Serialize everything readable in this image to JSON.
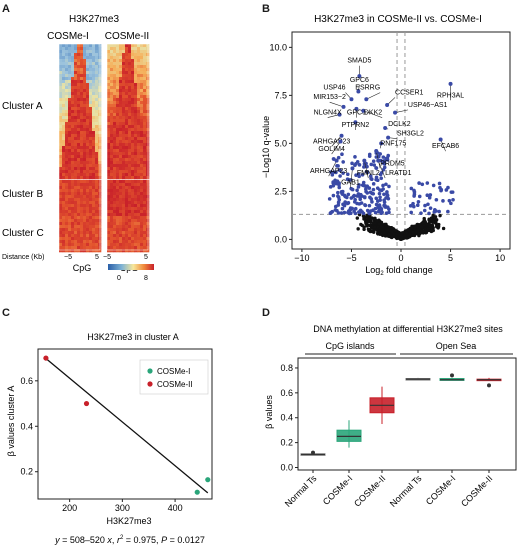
{
  "panels": {
    "A": "A",
    "B": "B",
    "C": "C",
    "D": "D"
  },
  "chart_data": [
    {
      "panel": "A",
      "type": "heatmap",
      "title": "H3K27me3",
      "columns": [
        "COSMe-I",
        "COSMe-II"
      ],
      "clusters": [
        "Cluster A",
        "Cluster B",
        "Cluster C"
      ],
      "x_axis_label": "Distance (Kb)",
      "x_ticks": [
        "−5",
        "5",
        "−5",
        "5"
      ],
      "center_labels": [
        "CpG",
        "CpG"
      ],
      "colorbar": {
        "min": "0",
        "max": "8",
        "colors": [
          "#2a5fa8",
          "#7fb3d5",
          "#f7e79a",
          "#f08a3c",
          "#c8202a"
        ]
      }
    },
    {
      "panel": "B",
      "type": "scatter",
      "title": "H3K27me3 in COSMe-II vs. COSMe-I",
      "xlabel": "Log2 fold change",
      "ylabel": "−Log10 q-value",
      "xlim": [
        -11,
        11
      ],
      "ylim": [
        -0.5,
        10.8
      ],
      "x_ticks": [
        "−10",
        "−5",
        "0",
        "5",
        "10"
      ],
      "y_ticks": [
        "0.0",
        "2.5",
        "5.0",
        "7.5",
        "10.0"
      ],
      "hline": 1.3,
      "vlines": [
        -0.4,
        0.4
      ],
      "colors": {
        "significant": "#3a4aa6",
        "nonsignificant": "#111111"
      },
      "labeled_points": [
        {
          "label": "SMAD5",
          "x": -4.2,
          "y": 8.5
        },
        {
          "label": "GPC6",
          "x": -4.3,
          "y": 7.7
        },
        {
          "label": "USP46",
          "x": -5.0,
          "y": 7.3
        },
        {
          "label": "ESRRG",
          "x": -3.5,
          "y": 7.3
        },
        {
          "label": "MIR153−2",
          "x": -5.8,
          "y": 6.9
        },
        {
          "label": "GPC6",
          "x": -4.5,
          "y": 6.8
        },
        {
          "label": "DKK2",
          "x": -3.8,
          "y": 6.7
        },
        {
          "label": "NLGN4X",
          "x": -6.2,
          "y": 6.5
        },
        {
          "label": "PTPRN2",
          "x": -4.6,
          "y": 6.1
        },
        {
          "label": "ARHGAP23",
          "x": -6.0,
          "y": 5.4
        },
        {
          "label": "GOLIM4",
          "x": -6.1,
          "y": 5.1
        },
        {
          "label": "ARHGAP23",
          "x": -6.5,
          "y": 4.1
        },
        {
          "label": "FMNL2",
          "x": -3.7,
          "y": 4.1
        },
        {
          "label": "GAB1",
          "x": -4.9,
          "y": 3.7
        },
        {
          "label": "PRDM5",
          "x": -2.5,
          "y": 4.6
        },
        {
          "label": "LRATD1",
          "x": -2.3,
          "y": 4.1
        },
        {
          "label": "CCSER1",
          "x": -1.4,
          "y": 7.0
        },
        {
          "label": "USP46−AS1",
          "x": -0.6,
          "y": 6.6
        },
        {
          "label": "DCLK2",
          "x": -1.6,
          "y": 5.8
        },
        {
          "label": "SH3GL2",
          "x": -1.3,
          "y": 5.3
        },
        {
          "label": "RNF175",
          "x": -2.0,
          "y": 5.0
        },
        {
          "label": "RPH3AL",
          "x": 5.0,
          "y": 8.1
        },
        {
          "label": "EFCAB6",
          "x": 4.0,
          "y": 5.2
        }
      ]
    },
    {
      "panel": "C",
      "type": "scatter",
      "title": "H3K27me3 in cluster A",
      "xlabel": "H3K27me3",
      "ylabel": "β values cluster A",
      "xlim": [
        140,
        470
      ],
      "ylim": [
        0.08,
        0.74
      ],
      "x_ticks": [
        "200",
        "300",
        "400"
      ],
      "y_ticks": [
        "0.2",
        "0.4",
        "0.6"
      ],
      "legend": [
        "COSMe-I",
        "COSMe-II"
      ],
      "legend_position": "top-right",
      "series": [
        {
          "name": "COSMe-I",
          "color": "#2aa57a",
          "points": [
            [
              442,
              0.11
            ],
            [
              462,
              0.165
            ]
          ]
        },
        {
          "name": "COSMe-II",
          "color": "#c8202a",
          "points": [
            [
              155,
              0.7
            ],
            [
              232,
              0.5
            ]
          ]
        }
      ],
      "regression": {
        "x": [
          155,
          462
        ],
        "y": [
          0.698,
          0.107
        ]
      },
      "equation_parts": [
        "y",
        " = 508–520 ",
        "x",
        ", ",
        "r",
        "2",
        " = 0.975, ",
        "P",
        " = 0.0127"
      ]
    },
    {
      "panel": "D",
      "type": "boxplot",
      "title": "DNA methylation at differential H3K27me3 sites",
      "ylabel": "β values",
      "ylim": [
        -0.02,
        0.88
      ],
      "y_ticks": [
        "0.0",
        "0.2",
        "0.4",
        "0.6",
        "0.8"
      ],
      "groups": [
        "CpG islands",
        "Open Sea"
      ],
      "categories": [
        "Normal Ts",
        "COSMe-I",
        "COSMe-II",
        "Normal Ts",
        "COSMe-I",
        "COSMe-II"
      ],
      "boxes": [
        {
          "q1": 0.1,
          "median": 0.105,
          "q3": 0.11,
          "min": 0.1,
          "max": 0.11,
          "outliers": [
            0.12
          ],
          "color": "#7a7a7a"
        },
        {
          "q1": 0.21,
          "median": 0.25,
          "q3": 0.3,
          "min": 0.16,
          "max": 0.38,
          "outliers": [],
          "color": "#2aa57a"
        },
        {
          "q1": 0.44,
          "median": 0.5,
          "q3": 0.56,
          "min": 0.35,
          "max": 0.65,
          "outliers": [],
          "color": "#c8202a"
        },
        {
          "q1": 0.705,
          "median": 0.71,
          "q3": 0.715,
          "min": 0.7,
          "max": 0.72,
          "outliers": [],
          "color": "#7a7a7a"
        },
        {
          "q1": 0.7,
          "median": 0.705,
          "q3": 0.715,
          "min": 0.7,
          "max": 0.72,
          "outliers": [
            0.74
          ],
          "color": "#2aa57a"
        },
        {
          "q1": 0.7,
          "median": 0.705,
          "q3": 0.71,
          "min": 0.7,
          "max": 0.72,
          "outliers": [
            0.66
          ],
          "color": "#c8202a"
        }
      ]
    }
  ]
}
